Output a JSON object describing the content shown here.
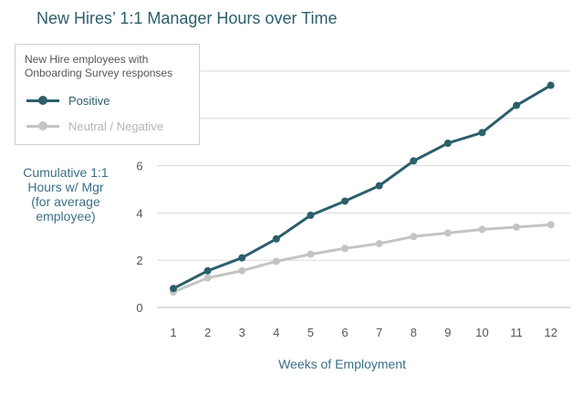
{
  "title": "New Hires’ 1:1 Manager Hours over Time",
  "legend": {
    "title_lines": [
      "New Hire employees with",
      "Onboarding Survey responses"
    ]
  },
  "chart_data": {
    "type": "line",
    "title": "New Hires’ 1:1 Manager Hours over Time",
    "xlabel": "Weeks of Employment",
    "ylabel_lines": [
      "Cumulative 1:1",
      "Hours w/ Mgr",
      "(for average",
      "employee)"
    ],
    "x": [
      1,
      2,
      3,
      4,
      5,
      6,
      7,
      8,
      9,
      10,
      11,
      12
    ],
    "ylim": [
      0,
      10
    ],
    "yticks": [
      0,
      2,
      4,
      6
    ],
    "grid": true,
    "legend_position": "top-left",
    "series": [
      {
        "name": "Positive",
        "color": "#2c5f6b",
        "values": [
          0.8,
          1.55,
          2.1,
          2.9,
          3.9,
          4.5,
          5.15,
          6.2,
          6.95,
          7.4,
          8.55,
          9.4
        ]
      },
      {
        "name": "Neutral / Negative",
        "color": "#c4c4c4",
        "values": [
          0.65,
          1.25,
          1.55,
          1.95,
          2.25,
          2.5,
          2.7,
          3.0,
          3.15,
          3.3,
          3.4,
          3.5
        ]
      }
    ]
  }
}
